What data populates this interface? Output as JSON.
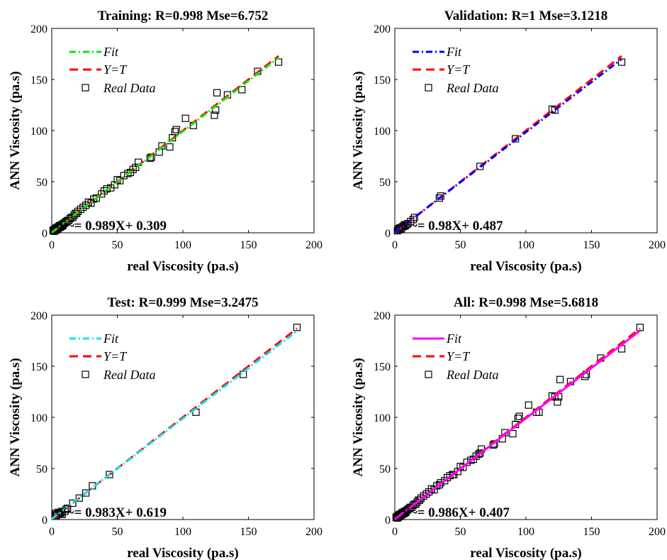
{
  "chart_data": [
    {
      "type": "scatter",
      "title": "Training: R=0.998  Mse=6.752",
      "xlabel": "real Viscosity (pa.s)",
      "ylabel": "ANN Viscosity (pa.s)",
      "xlim": [
        0,
        200
      ],
      "ylim": [
        0,
        200
      ],
      "xticks": [
        "0",
        "50",
        "100",
        "150",
        "200"
      ],
      "yticks": [
        "0",
        "50",
        "100",
        "150",
        "200"
      ],
      "grid": false,
      "legend_position": "top-left",
      "legend": [
        "Fit",
        "Y=T",
        "Real Data"
      ],
      "equation": "Y~= 0.989X+ 0.309",
      "fit": {
        "slope": 0.989,
        "intercept": 0.309,
        "color": "#00ee00",
        "style": "dash-dot",
        "x_range": [
          0,
          173
        ]
      },
      "identity": {
        "color": "#ff0000",
        "style": "dashed",
        "x_range": [
          0,
          173
        ]
      },
      "series": [
        {
          "name": "Real Data",
          "x": [
            1,
            1.5,
            2,
            2.5,
            3,
            3.5,
            4,
            4.5,
            5,
            5.5,
            6,
            6.5,
            7,
            7.5,
            8,
            8.5,
            9,
            10,
            11,
            12,
            13,
            14,
            15,
            16,
            17,
            18,
            19,
            20,
            22,
            24,
            26,
            28,
            30,
            32,
            34,
            38,
            40,
            42,
            45,
            48,
            50,
            52,
            55,
            58,
            60,
            62,
            64,
            66,
            75,
            76,
            82,
            84,
            90,
            92,
            94,
            95,
            102,
            108,
            124,
            125,
            126,
            134,
            145,
            157,
            173
          ],
          "y": [
            2,
            3,
            1.5,
            4,
            2.5,
            5,
            3.5,
            4,
            6,
            5,
            7,
            5.5,
            7,
            6.5,
            8,
            7,
            9,
            10,
            11,
            12,
            12,
            14,
            15,
            15,
            17,
            19,
            19,
            21,
            23,
            25,
            27,
            30,
            29,
            33,
            34,
            38,
            41,
            43,
            44,
            47,
            52,
            51,
            56,
            58,
            59,
            62,
            64,
            69,
            73,
            74,
            79,
            85,
            84,
            93,
            99,
            101,
            112,
            105,
            115,
            120,
            137,
            135,
            140,
            158,
            167
          ]
        }
      ]
    },
    {
      "type": "scatter",
      "title": "Validation: R=1  Mse=3.1218",
      "xlabel": "real Viscosity (pa.s)",
      "ylabel": "ANN Viscosity (pa.s)",
      "xlim": [
        0,
        200
      ],
      "ylim": [
        0,
        200
      ],
      "xticks": [
        "0",
        "50",
        "100",
        "150",
        "200"
      ],
      "yticks": [
        "0",
        "50",
        "100",
        "150",
        "200"
      ],
      "grid": false,
      "legend_position": "top-left",
      "legend": [
        "Fit",
        "Y=T",
        "Real Data"
      ],
      "equation": "Y~= 0.98X+ 0.487",
      "fit": {
        "slope": 0.98,
        "intercept": 0.487,
        "color": "#0000ff",
        "style": "dash-dot",
        "x_range": [
          0,
          173
        ]
      },
      "identity": {
        "color": "#ff0000",
        "style": "dashed",
        "x_range": [
          0,
          173
        ]
      },
      "series": [
        {
          "name": "Real Data",
          "x": [
            2,
            3,
            3.5,
            4,
            5,
            6,
            7,
            8,
            9,
            10,
            12,
            14,
            15,
            34,
            35,
            65,
            92,
            120,
            122,
            173
          ],
          "y": [
            2,
            4,
            3,
            5,
            4,
            6,
            7,
            7,
            8,
            9,
            11,
            13,
            15,
            34,
            36,
            65,
            92,
            121,
            120,
            167
          ]
        }
      ]
    },
    {
      "type": "scatter",
      "title": "Test: R=0.999  Mse=3.2475",
      "xlabel": "real Viscosity (pa.s)",
      "ylabel": "ANN Viscosity (pa.s)",
      "xlim": [
        0,
        200
      ],
      "ylim": [
        0,
        200
      ],
      "xticks": [
        "0",
        "50",
        "100",
        "150",
        "200"
      ],
      "yticks": [
        "0",
        "50",
        "100",
        "150",
        "200"
      ],
      "grid": false,
      "legend_position": "top-left",
      "legend": [
        "Fit",
        "Y=T",
        "Real Data"
      ],
      "equation": "Y~= 0.983X+ 0.619",
      "fit": {
        "slope": 0.983,
        "intercept": 0.619,
        "color": "#00e5ee",
        "style": "dash-dot",
        "x_range": [
          0,
          187
        ]
      },
      "identity": {
        "color": "#ff0000",
        "style": "dashed",
        "x_range": [
          0,
          187
        ]
      },
      "series": [
        {
          "name": "Real Data",
          "x": [
            3,
            3.5,
            4,
            5,
            6,
            7,
            8,
            10,
            11,
            12,
            16,
            21,
            26,
            31,
            44,
            110,
            146,
            187
          ],
          "y": [
            6,
            4,
            5,
            7,
            6,
            7,
            5,
            8,
            10,
            11,
            16,
            21,
            26,
            33,
            44,
            105,
            142,
            188
          ]
        }
      ]
    },
    {
      "type": "scatter",
      "title": "All: R=0.998  Mse=5.6818",
      "xlabel": "real Viscosity (pa.s)",
      "ylabel": "ANN Viscosity (pa.s)",
      "xlim": [
        0,
        200
      ],
      "ylim": [
        0,
        200
      ],
      "xticks": [
        "0",
        "50",
        "100",
        "150",
        "200"
      ],
      "yticks": [
        "0",
        "50",
        "100",
        "150",
        "200"
      ],
      "grid": false,
      "legend_position": "top-left",
      "legend": [
        "Fit",
        "Y=T",
        "Real Data"
      ],
      "equation": "Y~= 0.986X+ 0.407",
      "fit": {
        "slope": 0.986,
        "intercept": 0.407,
        "color": "#ff00ff",
        "style": "solid",
        "x_range": [
          0,
          187
        ]
      },
      "identity": {
        "color": "#ff0000",
        "style": "dashed",
        "x_range": [
          0,
          187
        ]
      },
      "series": [
        {
          "name": "Real Data",
          "x": [
            1,
            1.5,
            2,
            2.5,
            3,
            3.5,
            4,
            4.5,
            5,
            5.5,
            6,
            6.5,
            7,
            7.5,
            8,
            8.5,
            9,
            10,
            11,
            12,
            13,
            14,
            15,
            16,
            17,
            18,
            19,
            20,
            22,
            24,
            26,
            28,
            30,
            32,
            34,
            35,
            38,
            40,
            42,
            44,
            45,
            48,
            50,
            52,
            55,
            58,
            60,
            62,
            64,
            65,
            66,
            75,
            76,
            82,
            84,
            90,
            92,
            94,
            95,
            102,
            108,
            110,
            120,
            122,
            124,
            125,
            126,
            134,
            145,
            146,
            157,
            173,
            187
          ],
          "y": [
            2,
            3,
            1.5,
            4,
            2.5,
            5,
            3.5,
            4,
            6,
            5,
            7,
            5.5,
            7,
            6.5,
            8,
            7,
            9,
            10,
            11,
            12,
            12,
            14,
            15,
            15,
            17,
            19,
            19,
            21,
            23,
            25,
            27,
            30,
            29,
            33,
            34,
            36,
            38,
            41,
            43,
            44,
            44,
            47,
            52,
            51,
            56,
            58,
            59,
            62,
            64,
            65,
            69,
            73,
            74,
            79,
            85,
            84,
            93,
            99,
            101,
            112,
            105,
            105,
            121,
            120,
            115,
            120,
            137,
            135,
            140,
            142,
            158,
            167,
            188
          ]
        }
      ]
    }
  ]
}
